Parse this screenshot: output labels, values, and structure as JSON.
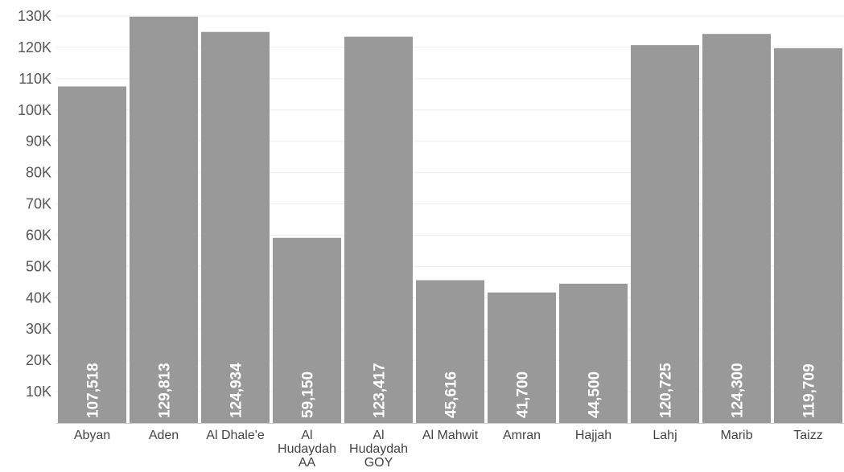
{
  "chart_data": {
    "type": "bar",
    "categories": [
      [
        "Abyan"
      ],
      [
        "Aden"
      ],
      [
        "Al Dhale'e"
      ],
      [
        "Al",
        "Hudaydah",
        "AA"
      ],
      [
        "Al",
        "Hudaydah",
        "GOY"
      ],
      [
        "Al Mahwit"
      ],
      [
        "Amran"
      ],
      [
        "Hajjah"
      ],
      [
        "Lahj"
      ],
      [
        "Marib"
      ],
      [
        "Taizz"
      ]
    ],
    "values": [
      107518,
      129813,
      124934,
      59150,
      123417,
      45616,
      41700,
      44500,
      120725,
      124300,
      119709
    ],
    "data_labels": [
      "107,518",
      "129,813",
      "124,934",
      "59,150",
      "123,417",
      "45,616",
      "41,700",
      "44,500",
      "120,725",
      "124,300",
      "119,709"
    ],
    "yticks": [
      10000,
      20000,
      30000,
      40000,
      50000,
      60000,
      70000,
      80000,
      90000,
      100000,
      110000,
      120000,
      130000
    ],
    "ytick_labels": [
      "10K",
      "20K",
      "30K",
      "40K",
      "50K",
      "60K",
      "70K",
      "80K",
      "90K",
      "100K",
      "110K",
      "120K",
      "130K"
    ],
    "ylim": [
      0,
      130000
    ],
    "bar_color": "#999999",
    "grid": true
  }
}
